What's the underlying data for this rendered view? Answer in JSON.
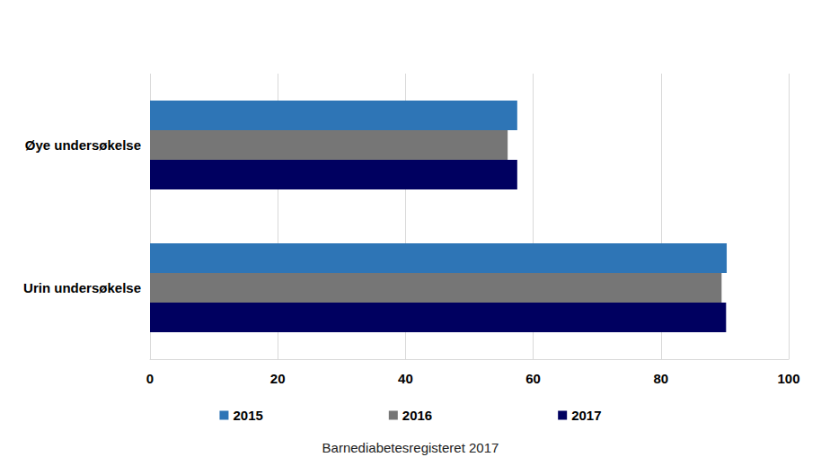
{
  "chart_data": {
    "type": "bar",
    "orientation": "horizontal",
    "subtitle": "Barnediabetesregisteret 2017",
    "categories": [
      "Øye undersøkelse",
      "Urin undersøkelse"
    ],
    "series": [
      {
        "name": "2015",
        "color": "#2e75b6",
        "values": [
          57.5,
          90.3
        ]
      },
      {
        "name": "2016",
        "color": "#767676",
        "values": [
          56,
          89.5
        ]
      },
      {
        "name": "2017",
        "color": "#000060",
        "values": [
          57.5,
          90.2
        ]
      }
    ],
    "xlim": [
      0,
      100
    ],
    "xticks": [
      0,
      20,
      40,
      60,
      80,
      100
    ],
    "grid": true,
    "legend": "bottom"
  }
}
